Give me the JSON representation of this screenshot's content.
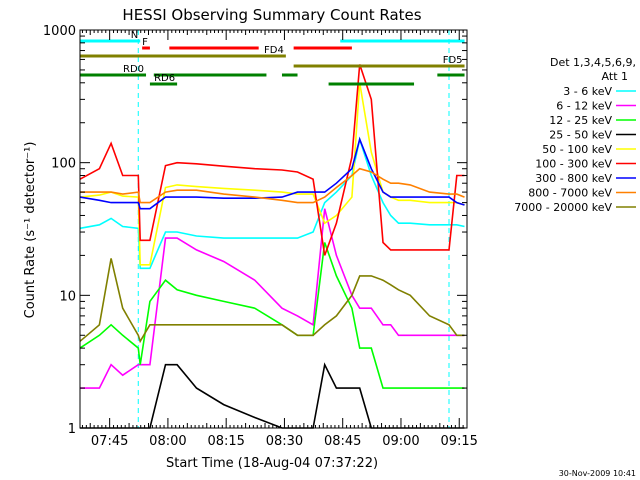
{
  "chart_data": {
    "type": "line",
    "title": "HESSI Observing Summary Count Rates",
    "xlabel": "Start Time (18-Aug-04 07:37:22)",
    "ylabel": "Count Rate (s⁻¹ detector⁻¹)",
    "yscale": "log",
    "ylim": [
      1,
      1000
    ],
    "xlim": [
      "07:37:22",
      "09:17:00"
    ],
    "x_ticks": [
      "07:45",
      "08:00",
      "08:15",
      "08:30",
      "08:45",
      "09:00",
      "09:15"
    ],
    "y_ticks": [
      "1",
      "10",
      "100",
      "1000"
    ],
    "timestamp": "30-Nov-2009 10:41",
    "legend": {
      "placement": "right",
      "title_lines": [
        "Det 1,3,4,5,6,9,",
        "Att 1"
      ]
    },
    "x_minutes": [
      0,
      5,
      8,
      11,
      15,
      15.5,
      18,
      22,
      25,
      30,
      37,
      45,
      52,
      56,
      60,
      63,
      66,
      70,
      72,
      75,
      78,
      80,
      82,
      85,
      90,
      95,
      97,
      99
    ],
    "series": [
      {
        "name": "3 - 6 keV",
        "color": "#00ffff",
        "values": [
          32,
          34,
          38,
          33,
          32,
          16,
          16,
          30,
          30,
          28,
          27,
          27,
          27,
          27,
          30,
          50,
          60,
          80,
          150,
          80,
          50,
          40,
          35,
          35,
          34,
          34,
          34,
          33
        ]
      },
      {
        "name": "6 - 12 keV",
        "color": "#ff00ff",
        "values": [
          2,
          2,
          3,
          2.5,
          3,
          3,
          3,
          27,
          27,
          22,
          18,
          13,
          8,
          7,
          6,
          45,
          20,
          10,
          8,
          8,
          6,
          6,
          5,
          5,
          5,
          5,
          5,
          5
        ]
      },
      {
        "name": "12 - 25 keV",
        "color": "#00ff00",
        "values": [
          4,
          5,
          6,
          5,
          4,
          3,
          9,
          13,
          11,
          10,
          9,
          8,
          6,
          5,
          5,
          25,
          14,
          8,
          4,
          4,
          2,
          2,
          2,
          2,
          2,
          2,
          2,
          2
        ]
      },
      {
        "name": "25 - 50 keV",
        "color": "#000000",
        "values": [
          1,
          1,
          1,
          1,
          1,
          1,
          1,
          3,
          3,
          2,
          1.5,
          1.2,
          1,
          1,
          1,
          3,
          2,
          2,
          2,
          1,
          1,
          1,
          1,
          1,
          1,
          1,
          1,
          1
        ]
      },
      {
        "name": "50 - 100 keV",
        "color": "#ffff00",
        "values": [
          55,
          57,
          60,
          56,
          55,
          17,
          17,
          65,
          68,
          66,
          64,
          62,
          60,
          58,
          58,
          35,
          40,
          55,
          400,
          120,
          60,
          55,
          52,
          52,
          50,
          50,
          50,
          48
        ]
      },
      {
        "name": "100 - 300 keV",
        "color": "#ff0000",
        "values": [
          75,
          90,
          140,
          80,
          80,
          26,
          26,
          95,
          100,
          98,
          94,
          90,
          88,
          85,
          75,
          20,
          35,
          110,
          550,
          300,
          25,
          22,
          22,
          22,
          22,
          22,
          80,
          80
        ]
      },
      {
        "name": "300 - 800 keV",
        "color": "#0000ff",
        "values": [
          55,
          52,
          50,
          50,
          50,
          45,
          45,
          55,
          55,
          55,
          54,
          54,
          55,
          60,
          60,
          60,
          70,
          90,
          150,
          90,
          60,
          55,
          55,
          55,
          55,
          55,
          50,
          48
        ]
      },
      {
        "name": "800 - 7000 keV",
        "color": "#ff8000",
        "values": [
          60,
          60,
          60,
          58,
          60,
          50,
          50,
          60,
          62,
          62,
          58,
          55,
          52,
          50,
          50,
          55,
          65,
          80,
          90,
          85,
          75,
          70,
          70,
          68,
          60,
          58,
          58,
          55
        ]
      },
      {
        "name": "7000 - 20000 keV",
        "color": "#808000",
        "values": [
          4.5,
          6,
          19,
          8,
          5,
          4.5,
          6,
          6,
          6,
          6,
          6,
          6,
          6,
          5,
          5,
          6,
          7,
          10,
          14,
          14,
          13,
          12,
          11,
          10,
          7,
          6,
          5,
          5
        ]
      }
    ],
    "state_bars": [
      {
        "label": "N",
        "color": "#00ffff",
        "segments": [
          [
            0,
            15.5
          ],
          [
            67,
            99
          ]
        ]
      },
      {
        "label": "F",
        "color": "#ff0000",
        "segments": [
          [
            16,
            18
          ],
          [
            23,
            46
          ],
          [
            55,
            70
          ]
        ]
      },
      {
        "label": "FD4",
        "color": "#808000",
        "segments": [
          [
            0,
            53
          ]
        ]
      },
      {
        "label": "FD5",
        "color": "#808000",
        "segments": [
          [
            55,
            99
          ]
        ]
      },
      {
        "label": "RD0",
        "color": "#008000",
        "segments": [
          [
            0,
            17
          ],
          [
            19,
            48
          ],
          [
            52,
            56
          ],
          [
            92,
            99
          ]
        ]
      },
      {
        "label": "RD6",
        "color": "#008000",
        "segments": [
          [
            18,
            25
          ],
          [
            64,
            86
          ]
        ]
      }
    ],
    "vlines_minutes": [
      15,
      95
    ],
    "grid": false
  }
}
